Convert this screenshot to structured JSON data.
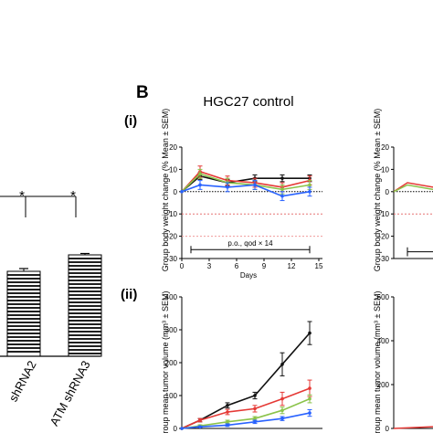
{
  "panel_b_letter": "B",
  "panel_i_label": "(i)",
  "panel_ii_label": "(ii)",
  "chart_data": [
    {
      "type": "bar",
      "panel": "A (partial)",
      "categories": [
        "shRNA2",
        "ATM shRNA3"
      ],
      "values": [
        0.62,
        0.74
      ],
      "errors": [
        0.02,
        0.01
      ],
      "significance": [
        "*",
        "*"
      ],
      "ylim": [
        0,
        1.0
      ],
      "fill_pattern": "horizontal-stripes"
    },
    {
      "type": "line",
      "panel": "B(i)",
      "title": "HGC27 control",
      "xlabel": "Days",
      "ylabel": "Group body weight change (% Mean ± SEM)",
      "xlim": [
        0,
        15
      ],
      "ylim": [
        -30,
        20
      ],
      "xticks": [
        0,
        3,
        6,
        9,
        12,
        15
      ],
      "yticks": [
        -30,
        -20,
        -10,
        0,
        10,
        20
      ],
      "reference_lines": [
        0,
        -10,
        -20
      ],
      "dosing_label": "p.o., qod × 14",
      "x": [
        0,
        2,
        5,
        8,
        11,
        14
      ],
      "series": [
        {
          "color": "#111111",
          "values": [
            0,
            7,
            4,
            6,
            6,
            6
          ],
          "errors": [
            0,
            1.5,
            1.5,
            1.5,
            1.5,
            1.5
          ]
        },
        {
          "color": "#e53935",
          "values": [
            0,
            9,
            5,
            4,
            2,
            5
          ],
          "errors": [
            0,
            2.5,
            2,
            2,
            2,
            2
          ]
        },
        {
          "color": "#8bc34a",
          "values": [
            0,
            8,
            4,
            3,
            1,
            3
          ],
          "errors": [
            0,
            2,
            2,
            2,
            2,
            2
          ]
        },
        {
          "color": "#2962ff",
          "values": [
            0,
            3,
            2,
            3,
            -2,
            0
          ],
          "errors": [
            0,
            2,
            2,
            2,
            2,
            2
          ]
        }
      ]
    },
    {
      "type": "line",
      "panel": "B(ii)",
      "ylabel": "Group mean tumor volume (mm³ ± SEM)",
      "xlim": [
        0,
        15
      ],
      "ylim": [
        0,
        400
      ],
      "yticks": [
        0,
        100,
        200,
        300,
        400
      ],
      "x": [
        0,
        2,
        5,
        8,
        11,
        14
      ],
      "series": [
        {
          "color": "#111111",
          "values": [
            0,
            25,
            70,
            100,
            195,
            290
          ],
          "errors": [
            0,
            5,
            8,
            10,
            35,
            35
          ]
        },
        {
          "color": "#e53935",
          "values": [
            0,
            25,
            50,
            60,
            90,
            122
          ],
          "errors": [
            0,
            5,
            8,
            10,
            20,
            25
          ]
        },
        {
          "color": "#8bc34a",
          "values": [
            0,
            8,
            20,
            30,
            55,
            90
          ],
          "errors": [
            0,
            3,
            5,
            6,
            10,
            12
          ]
        },
        {
          "color": "#2962ff",
          "values": [
            0,
            5,
            10,
            20,
            30,
            47
          ],
          "errors": [
            0,
            2,
            4,
            5,
            6,
            10
          ]
        }
      ]
    },
    {
      "type": "line",
      "panel": "B right (partial)",
      "ylabel": "Group body weight change (% Mean ± SEM)",
      "ylim": [
        -30,
        20
      ],
      "yticks": [
        -30,
        -20,
        -10,
        0,
        10,
        20
      ]
    },
    {
      "type": "line",
      "panel": "B right lower (partial)",
      "ylabel": "Group mean tumor volume (mm³ ± SEM)",
      "ylim": [
        0,
        600
      ],
      "yticks": [
        0,
        200,
        400,
        600
      ]
    }
  ]
}
